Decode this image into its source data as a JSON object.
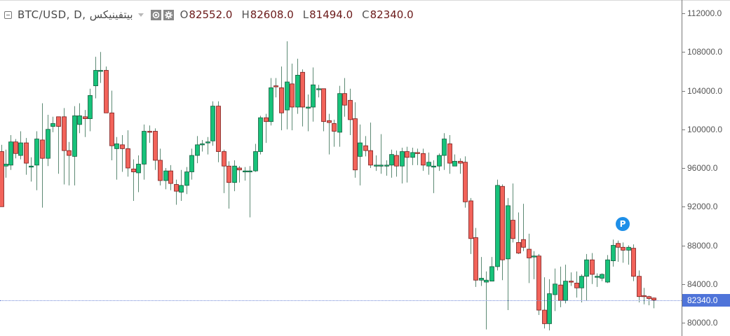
{
  "legend": {
    "symbol": "BTC/USD, D, بيتفينيكس",
    "ohlc": [
      {
        "key": "O",
        "value": "82552.0"
      },
      {
        "key": "H",
        "value": "82608.0"
      },
      {
        "key": "L",
        "value": "81494.0"
      },
      {
        "key": "C",
        "value": "82340.0"
      }
    ]
  },
  "axis": {
    "labels": [
      "112000.0",
      "108000.0",
      "104000.0",
      "100000.0",
      "96000.0",
      "92000.0",
      "88000.0",
      "84000.0",
      "80000.0"
    ],
    "current_price_label": "82340.0"
  },
  "marker": {
    "label": "P"
  },
  "colors": {
    "up": "#17c27a",
    "down": "#f2635a",
    "up_border": "#145c3d",
    "down_border": "#7a1c1c",
    "wick": "#5d8a74",
    "price_tag": "#4f74d9",
    "price_line": "#6f86d6",
    "marker": "#1e8fe8"
  },
  "chart_data": {
    "type": "candlestick",
    "title": "BTC/USD, D, بيتفينيكس",
    "timeframe": "D",
    "ylim": [
      79300,
      113300
    ],
    "y_ticks": [
      112000,
      108000,
      104000,
      100000,
      96000,
      92000,
      88000,
      84000,
      80000
    ],
    "current_price": 82340.0,
    "last_bar": {
      "open": 82552.0,
      "high": 82608.0,
      "low": 81494.0,
      "close": 82340.0
    },
    "grid": false,
    "candles": [
      [
        2,
        97700,
        92000,
        98400,
        92000
      ],
      [
        8,
        96200,
        96400,
        97900,
        95000
      ],
      [
        15,
        96300,
        98700,
        99400,
        95800
      ],
      [
        22,
        98700,
        97500,
        99000,
        97000
      ],
      [
        29,
        97300,
        98600,
        99800,
        96900
      ],
      [
        37,
        98600,
        96500,
        99100,
        95300
      ],
      [
        44,
        96200,
        96200,
        97100,
        94600
      ],
      [
        52,
        96300,
        99000,
        99800,
        93700
      ],
      [
        60,
        98900,
        97000,
        102700,
        91900
      ],
      [
        68,
        97000,
        100000,
        101500,
        96200
      ],
      [
        75,
        100300,
        100600,
        101300,
        99700
      ],
      [
        83,
        101300,
        100300,
        101300,
        95400
      ],
      [
        91,
        101300,
        97800,
        102200,
        94300
      ],
      [
        98,
        97800,
        97300,
        98700,
        94200
      ],
      [
        106,
        97200,
        101400,
        102400,
        94200
      ],
      [
        113,
        100500,
        101400,
        102700,
        99600
      ],
      [
        121,
        101300,
        101100,
        102000,
        99200
      ],
      [
        128,
        101100,
        103500,
        104200,
        99800
      ],
      [
        136,
        104500,
        106100,
        107500,
        103200
      ],
      [
        143,
        106000,
        106100,
        108000,
        104800
      ],
      [
        151,
        106100,
        101700,
        106500,
        101700
      ],
      [
        159,
        101700,
        98300,
        104000,
        96800
      ],
      [
        166,
        98000,
        98500,
        99200,
        94800
      ],
      [
        174,
        98400,
        98000,
        99400,
        95600
      ],
      [
        182,
        98000,
        96000,
        99900,
        95100
      ],
      [
        190,
        95900,
        95600,
        96900,
        92600
      ],
      [
        197,
        95500,
        96400,
        97300,
        93500
      ],
      [
        205,
        96400,
        99800,
        100500,
        94800
      ],
      [
        213,
        99800,
        99700,
        100400,
        98600
      ],
      [
        221,
        99800,
        96800,
        100100,
        95800
      ],
      [
        228,
        96800,
        94700,
        98000,
        94200
      ],
      [
        236,
        94700,
        95700,
        96000,
        93800
      ],
      [
        243,
        95700,
        94400,
        96300,
        93700
      ],
      [
        251,
        94300,
        93600,
        94800,
        92200
      ],
      [
        258,
        93500,
        94200,
        95800,
        92600
      ],
      [
        266,
        94200,
        95600,
        96100,
        93300
      ],
      [
        273,
        95600,
        97300,
        98000,
        94800
      ],
      [
        281,
        97300,
        98400,
        99300,
        96500
      ],
      [
        288,
        98500,
        98500,
        98900,
        97700
      ],
      [
        296,
        98600,
        98700,
        99200,
        97400
      ],
      [
        303,
        98800,
        102400,
        102900,
        98300
      ],
      [
        311,
        102400,
        97700,
        102900,
        96600
      ],
      [
        319,
        97700,
        96200,
        97900,
        93400
      ],
      [
        326,
        96200,
        94500,
        96700,
        91800
      ],
      [
        334,
        94500,
        96200,
        96800,
        93600
      ],
      [
        341,
        96000,
        95800,
        96200,
        94500
      ],
      [
        349,
        95700,
        95700,
        96100,
        94700
      ],
      [
        356,
        95700,
        95700,
        96200,
        90900
      ],
      [
        364,
        95700,
        97700,
        98500,
        95600
      ],
      [
        371,
        97700,
        101200,
        101400,
        97400
      ],
      [
        379,
        101200,
        100800,
        101600,
        98600
      ],
      [
        386,
        100800,
        104300,
        105300,
        100400
      ],
      [
        393,
        104500,
        104400,
        105300,
        103300
      ],
      [
        401,
        104300,
        101700,
        106500,
        99900
      ],
      [
        409,
        102000,
        104900,
        109100,
        100000
      ],
      [
        416,
        104700,
        102300,
        106800,
        99900
      ],
      [
        424,
        102300,
        105600,
        107300,
        101600
      ],
      [
        431,
        105900,
        102300,
        106200,
        100300
      ],
      [
        439,
        102300,
        102300,
        103600,
        99800
      ],
      [
        446,
        102300,
        104600,
        106400,
        100800
      ],
      [
        454,
        104200,
        104200,
        104600,
        103300
      ],
      [
        461,
        104200,
        100800,
        104200,
        99800
      ],
      [
        469,
        100900,
        100700,
        101600,
        97400
      ],
      [
        476,
        100600,
        99800,
        101000,
        98200
      ],
      [
        484,
        99700,
        103700,
        104500,
        98200
      ],
      [
        491,
        103700,
        102500,
        105300,
        101300
      ],
      [
        499,
        103000,
        101000,
        104200,
        99400
      ],
      [
        506,
        101100,
        95800,
        102800,
        95000
      ],
      [
        513,
        97200,
        98600,
        100500,
        94200
      ],
      [
        521,
        98300,
        97800,
        99300,
        97200
      ],
      [
        528,
        97800,
        96300,
        100700,
        96000
      ],
      [
        536,
        96300,
        96300,
        97300,
        95700
      ],
      [
        543,
        96300,
        96300,
        99500,
        95400
      ],
      [
        551,
        96300,
        96300,
        96800,
        95200
      ],
      [
        558,
        96300,
        97400,
        97900,
        95000
      ],
      [
        565,
        97300,
        96200,
        97800,
        95100
      ],
      [
        573,
        96200,
        97700,
        98100,
        94400
      ],
      [
        580,
        97700,
        97100,
        98200,
        94500
      ],
      [
        588,
        97100,
        97600,
        98100,
        96300
      ],
      [
        595,
        97600,
        97500,
        98000,
        96300
      ],
      [
        603,
        97500,
        96300,
        98000,
        95700
      ],
      [
        611,
        96200,
        96600,
        97600,
        95300
      ],
      [
        618,
        96200,
        96200,
        96800,
        93400
      ],
      [
        626,
        96200,
        97300,
        97500,
        95700
      ],
      [
        633,
        97300,
        99000,
        99600,
        95800
      ],
      [
        641,
        98500,
        96500,
        99400,
        95400
      ],
      [
        648,
        96200,
        96700,
        97400,
        96300
      ],
      [
        656,
        96700,
        96500,
        97000,
        95400
      ],
      [
        663,
        96600,
        92500,
        97200,
        91900
      ],
      [
        671,
        92600,
        88700,
        92900,
        87100
      ],
      [
        678,
        88800,
        84400,
        89800,
        83700
      ],
      [
        686,
        84400,
        84600,
        86800,
        83800
      ],
      [
        693,
        84200,
        84400,
        85300,
        79300
      ],
      [
        701,
        84300,
        85800,
        86800,
        84700
      ],
      [
        709,
        85800,
        94200,
        94800,
        85400
      ],
      [
        716,
        94100,
        86500,
        94300,
        84400
      ],
      [
        724,
        86600,
        92100,
        92900,
        81300
      ],
      [
        731,
        90600,
        88700,
        94400,
        88300
      ],
      [
        739,
        88300,
        87200,
        91400,
        87100
      ],
      [
        746,
        88600,
        87800,
        92300,
        87400
      ],
      [
        754,
        87600,
        86700,
        89200,
        84100
      ],
      [
        761,
        86900,
        86900,
        87400,
        84500
      ],
      [
        768,
        86900,
        81300,
        87100,
        80800
      ],
      [
        776,
        81300,
        79900,
        84700,
        79400
      ],
      [
        783,
        79900,
        83000,
        84500,
        79200
      ],
      [
        791,
        82900,
        84000,
        85600,
        81200
      ],
      [
        799,
        83900,
        82300,
        85800,
        81600
      ],
      [
        806,
        82300,
        84300,
        86000,
        82000
      ],
      [
        814,
        84300,
        84200,
        85200,
        83800
      ],
      [
        822,
        84100,
        83600,
        85300,
        82600
      ],
      [
        829,
        83600,
        84800,
        85000,
        82100
      ],
      [
        836,
        84800,
        86500,
        87100,
        82300
      ],
      [
        844,
        86500,
        85000,
        87200,
        84000
      ],
      [
        851,
        84800,
        84800,
        85100,
        83700
      ],
      [
        858,
        84600,
        85000,
        85100,
        84300
      ],
      [
        866,
        84200,
        86500,
        87000,
        84100
      ],
      [
        874,
        86400,
        88000,
        88600,
        85800
      ],
      [
        881,
        88200,
        87800,
        88500,
        86300
      ],
      [
        888,
        87800,
        87500,
        88300,
        86200
      ],
      [
        896,
        87500,
        87800,
        88000,
        86000
      ],
      [
        903,
        87700,
        84800,
        88100,
        84300
      ],
      [
        911,
        84800,
        82700,
        85400,
        82100
      ],
      [
        918,
        82800,
        82700,
        83600,
        81900
      ],
      [
        925,
        82700,
        82500,
        82800,
        81800
      ],
      [
        932,
        82552,
        82340,
        82608,
        81494
      ]
    ]
  }
}
